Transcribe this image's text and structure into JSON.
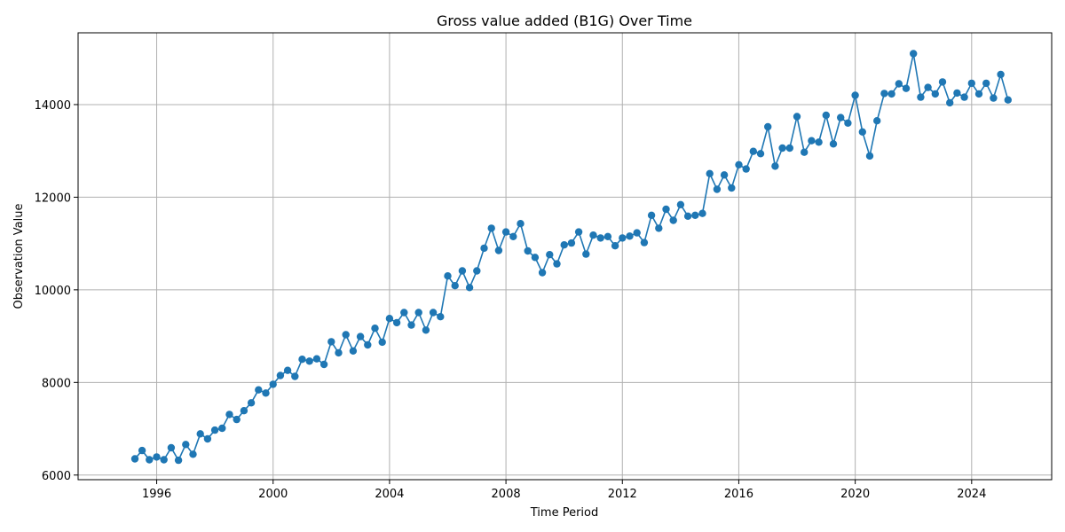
{
  "chart_data": {
    "type": "line",
    "title": "Gross value added (B1G) Over Time",
    "xlabel": "Time Period",
    "ylabel": "Observation Value",
    "xlim": [
      1993.3,
      2026.75
    ],
    "ylim": [
      5900,
      15550
    ],
    "x_ticks": [
      1996,
      2000,
      2004,
      2008,
      2012,
      2016,
      2020,
      2024
    ],
    "y_ticks": [
      6000,
      8000,
      10000,
      12000,
      14000
    ],
    "grid": true,
    "legend": "none",
    "colors": {
      "series": "#1f77b4",
      "grid": "#b0b0b0",
      "axis": "#000000"
    },
    "series": [
      {
        "x_start": 1995.25,
        "x_step": 0.25,
        "marker": "circle",
        "values": [
          6350,
          6530,
          6330,
          6390,
          6330,
          6590,
          6320,
          6660,
          6450,
          6890,
          6780,
          6970,
          7010,
          7310,
          7200,
          7390,
          7560,
          7840,
          7770,
          7960,
          8150,
          8260,
          8130,
          8500,
          8460,
          8510,
          8390,
          8880,
          8640,
          9030,
          8680,
          8990,
          8810,
          9170,
          8870,
          9380,
          9290,
          9510,
          9240,
          9510,
          9130,
          9510,
          9420,
          10300,
          10090,
          10410,
          10050,
          10410,
          10900,
          11330,
          10850,
          11250,
          11150,
          11430,
          10840,
          10700,
          10370,
          10760,
          10560,
          10970,
          11010,
          11250,
          10770,
          11180,
          11120,
          11150,
          10950,
          11120,
          11160,
          11230,
          11020,
          11610,
          11330,
          11740,
          11500,
          11840,
          11590,
          11610,
          11650,
          12510,
          12170,
          12480,
          12200,
          12700,
          12610,
          12990,
          12940,
          13520,
          12670,
          13060,
          13060,
          13740,
          12970,
          13220,
          13190,
          13770,
          13150,
          13720,
          13600,
          14200,
          13410,
          12890,
          13650,
          14240,
          14230,
          14450,
          14350,
          15100,
          14160,
          14370,
          14230,
          14490,
          14040,
          14250,
          14160,
          14460,
          14230,
          14460,
          14140,
          14650,
          14100
        ]
      }
    ]
  }
}
